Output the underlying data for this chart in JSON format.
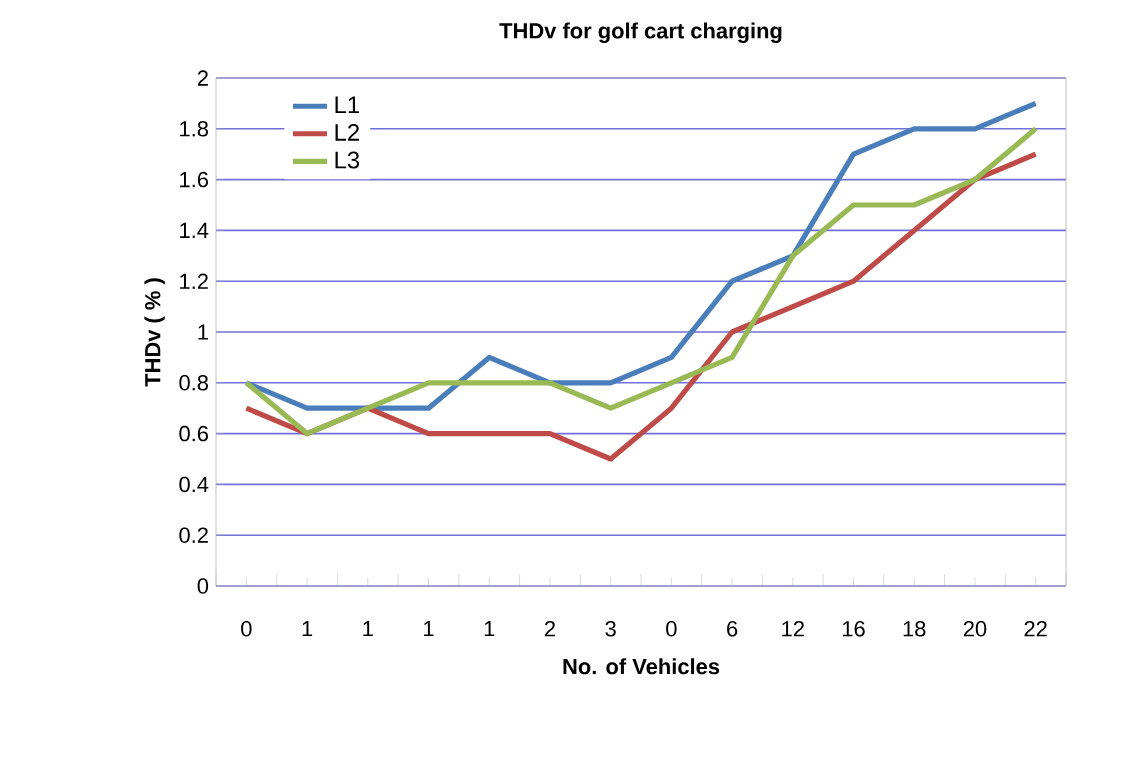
{
  "chart_data": {
    "type": "line",
    "title": "THDv for golf cart  charging",
    "xlabel": "No. of Vehicles",
    "ylabel": "THDv ( % )",
    "categories": [
      "0",
      "1",
      "1",
      "1",
      "1",
      "2",
      "3",
      "0",
      "6",
      "12",
      "16",
      "18",
      "20",
      "22"
    ],
    "series": [
      {
        "name": "L1",
        "color": "#4a7ebb",
        "values": [
          0.8,
          0.7,
          0.7,
          0.7,
          0.9,
          0.8,
          0.8,
          0.9,
          1.2,
          1.3,
          1.7,
          1.8,
          1.8,
          1.9
        ]
      },
      {
        "name": "L2",
        "color": "#be4b48",
        "values": [
          0.7,
          0.6,
          0.7,
          0.6,
          0.6,
          0.6,
          0.5,
          0.7,
          1.0,
          1.1,
          1.2,
          1.4,
          1.6,
          1.7
        ]
      },
      {
        "name": "L3",
        "color": "#98b954",
        "values": [
          0.8,
          0.6,
          0.7,
          0.8,
          0.8,
          0.8,
          0.7,
          0.8,
          0.9,
          1.3,
          1.5,
          1.5,
          1.6,
          1.8
        ]
      }
    ],
    "ylim": [
      0,
      2
    ],
    "yticks": [
      0,
      0.2,
      0.4,
      0.6,
      0.8,
      1,
      1.2,
      1.4,
      1.6,
      1.8,
      2
    ],
    "grid": "y",
    "legend": "top left",
    "marker": "none",
    "line_style": "solid"
  }
}
